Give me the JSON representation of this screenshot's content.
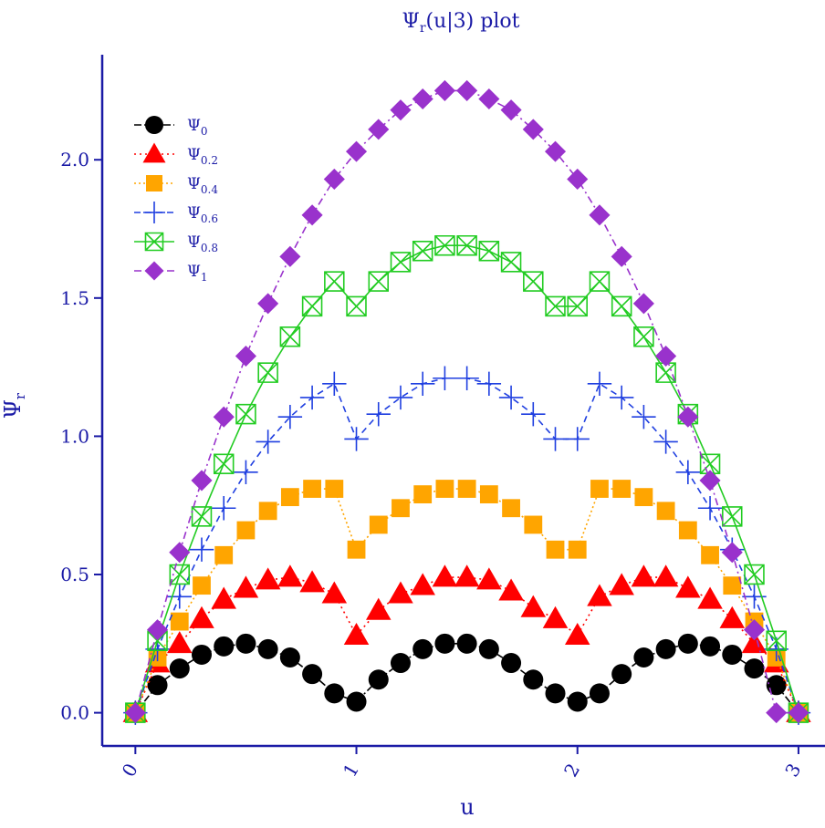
{
  "chart_data": {
    "type": "line",
    "title": "Ψr(u|3)  plot",
    "xlabel": "u",
    "ylabel": "Ψr",
    "xlim": [
      -0.15,
      3.12
    ],
    "ylim": [
      -0.12,
      2.38
    ],
    "x_ticks": [
      0,
      1,
      2,
      3
    ],
    "x_tick_labels": [
      "0",
      "1",
      "2",
      "3"
    ],
    "y_ticks": [
      0.0,
      0.5,
      1.0,
      1.5,
      2.0
    ],
    "y_tick_labels": [
      "0.0",
      "0.5",
      "1.0",
      "1.5",
      "2.0"
    ],
    "grid": false,
    "legend_position": "top-left",
    "x": [
      0,
      0.1,
      0.2,
      0.3,
      0.4,
      0.5,
      0.6,
      0.7,
      0.8,
      0.9,
      1.0,
      1.1,
      1.2,
      1.3,
      1.4,
      1.5,
      1.6,
      1.7,
      1.8,
      1.9,
      2.0,
      2.1,
      2.2,
      2.3,
      2.4,
      2.5,
      2.6,
      2.7,
      2.8,
      2.9,
      3.0
    ],
    "series": [
      {
        "name": "Ψ0",
        "sub": "0",
        "color": "#000000",
        "marker": "circle",
        "dash": "8,3,2,3",
        "values": [
          0.0,
          0.1,
          0.16,
          0.21,
          0.24,
          0.25,
          0.23,
          0.2,
          0.14,
          0.07,
          0.04,
          0.12,
          0.18,
          0.23,
          0.25,
          0.25,
          0.23,
          0.18,
          0.12,
          0.07,
          0.04,
          0.07,
          0.14,
          0.2,
          0.23,
          0.25,
          0.24,
          0.21,
          0.16,
          0.1,
          0.0
        ]
      },
      {
        "name": "Ψ0.2",
        "sub": "0.2",
        "color": "#ff0000",
        "marker": "triangle",
        "dash": "2,4",
        "values": [
          0.0,
          0.18,
          0.25,
          0.34,
          0.41,
          0.45,
          0.48,
          0.49,
          0.47,
          0.43,
          0.28,
          0.37,
          0.43,
          0.46,
          0.49,
          0.49,
          0.48,
          0.44,
          0.38,
          0.34,
          0.28,
          0.42,
          0.46,
          0.49,
          0.49,
          0.45,
          0.41,
          0.34,
          0.25,
          0.18,
          0.0
        ]
      },
      {
        "name": "Ψ0.4",
        "sub": "0.4",
        "color": "#ffa500",
        "marker": "square",
        "dash": "2,3",
        "values": [
          0.0,
          0.2,
          0.33,
          0.46,
          0.57,
          0.66,
          0.73,
          0.78,
          0.81,
          0.81,
          0.59,
          0.68,
          0.74,
          0.79,
          0.81,
          0.81,
          0.79,
          0.74,
          0.68,
          0.59,
          0.59,
          0.81,
          0.81,
          0.78,
          0.73,
          0.66,
          0.57,
          0.46,
          0.33,
          0.2,
          0.0
        ]
      },
      {
        "name": "Ψ0.6",
        "sub": "0.6",
        "color": "#1f3fe0",
        "marker": "plus",
        "dash": "7,5",
        "values": [
          0.0,
          0.23,
          0.42,
          0.59,
          0.74,
          0.87,
          0.98,
          1.07,
          1.14,
          1.19,
          0.99,
          1.08,
          1.14,
          1.19,
          1.21,
          1.21,
          1.19,
          1.14,
          1.08,
          0.99,
          0.99,
          1.19,
          1.14,
          1.07,
          0.98,
          0.87,
          0.74,
          0.59,
          0.42,
          0.23,
          0.0
        ]
      },
      {
        "name": "Ψ0.8",
        "sub": "0.8",
        "color": "#22cc22",
        "marker": "boxx",
        "dash": "",
        "values": [
          0.0,
          0.26,
          0.5,
          0.71,
          0.9,
          1.08,
          1.23,
          1.36,
          1.47,
          1.56,
          1.47,
          1.56,
          1.63,
          1.67,
          1.69,
          1.69,
          1.67,
          1.63,
          1.56,
          1.47,
          1.47,
          1.56,
          1.47,
          1.36,
          1.23,
          1.08,
          0.9,
          0.71,
          0.5,
          0.26,
          0.0
        ]
      },
      {
        "name": "Ψ1",
        "sub": "1",
        "color": "#9932cc",
        "marker": "diamond",
        "dash": "8,4,2,4",
        "values": [
          0.0,
          0.3,
          0.58,
          0.84,
          1.07,
          1.29,
          1.48,
          1.65,
          1.8,
          1.93,
          2.03,
          2.11,
          2.18,
          2.22,
          2.25,
          2.25,
          2.22,
          2.18,
          2.11,
          2.03,
          1.93,
          1.8,
          1.65,
          1.48,
          1.29,
          1.07,
          0.84,
          0.58,
          0.3,
          0.0,
          0.0
        ]
      }
    ]
  }
}
